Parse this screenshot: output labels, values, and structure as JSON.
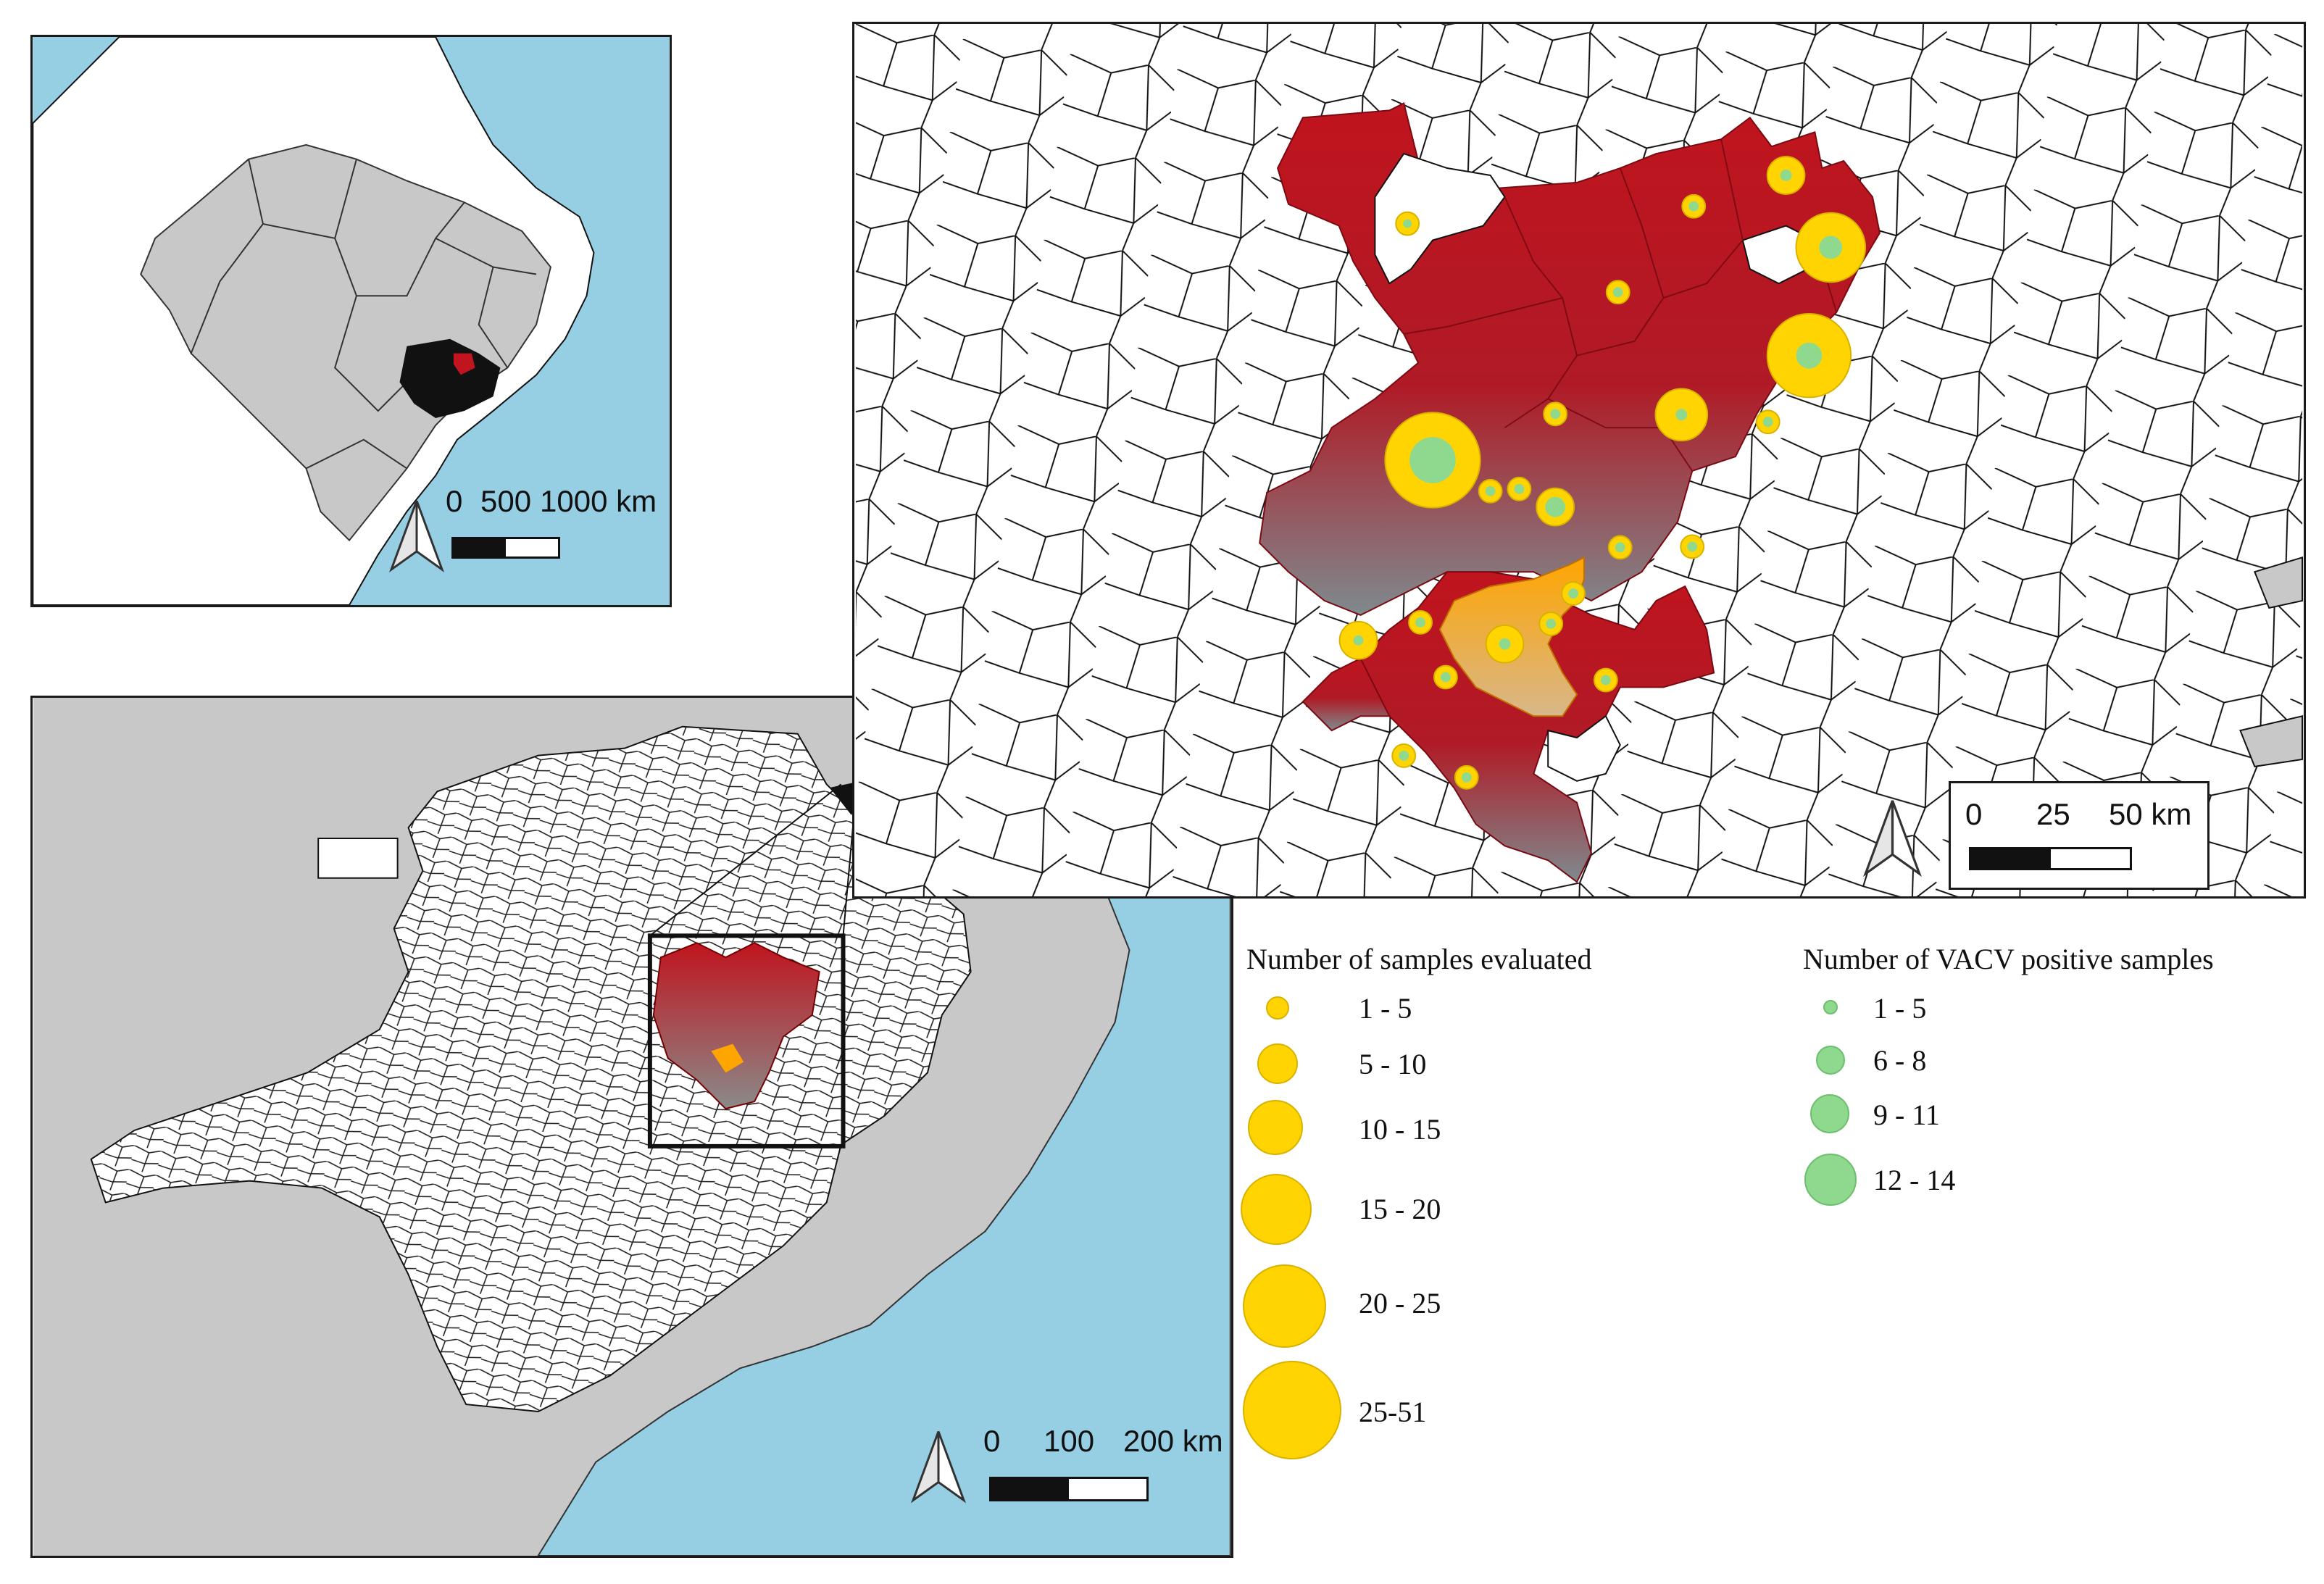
{
  "inset_south_america": {
    "scale": {
      "ticks": [
        "0",
        "500",
        "1000 km"
      ]
    }
  },
  "inset_state": {
    "scale": {
      "ticks": [
        "0",
        "100",
        "200 km"
      ]
    }
  },
  "detail_map": {
    "scale": {
      "ticks": [
        "0",
        "25",
        "50 km"
      ]
    }
  },
  "legend_samples": {
    "title": "Number of samples evaluated",
    "classes": [
      "1 - 5",
      "5 - 10",
      "10 - 15",
      "15 - 20",
      "20 - 25",
      "25-51"
    ]
  },
  "legend_positive": {
    "title": "Number of VACV positive samples",
    "classes": [
      "1 - 5",
      "6 - 8",
      "9 - 11",
      "12 - 14"
    ]
  },
  "colors": {
    "ocean": "#96cfe4",
    "land_other": "#c8c8c8",
    "region_red": "#c0141e",
    "region_fade": "#8a8a8a",
    "region_orange": "#ffa500",
    "samples_yellow": "#ffd400",
    "positive_green": "#8fd98f"
  }
}
